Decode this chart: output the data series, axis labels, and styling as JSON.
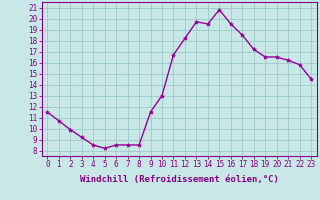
{
  "x": [
    0,
    1,
    2,
    3,
    4,
    5,
    6,
    7,
    8,
    9,
    10,
    11,
    12,
    13,
    14,
    15,
    16,
    17,
    18,
    19,
    20,
    21,
    22,
    23
  ],
  "y": [
    11.5,
    10.7,
    9.9,
    9.2,
    8.5,
    8.2,
    8.5,
    8.5,
    8.5,
    11.5,
    13.0,
    16.7,
    18.2,
    19.7,
    19.5,
    20.8,
    19.5,
    18.5,
    17.2,
    16.5,
    16.5,
    16.2,
    15.8,
    14.5
  ],
  "line_color": "#990099",
  "marker": "*",
  "marker_size": 3,
  "bg_color": "#c8e8e8",
  "grid_color": "#a0c8c8",
  "xlabel": "Windchill (Refroidissement éolien,°C)",
  "xlim": [
    -0.5,
    23.5
  ],
  "ylim": [
    7.5,
    21.5
  ],
  "yticks": [
    8,
    9,
    10,
    11,
    12,
    13,
    14,
    15,
    16,
    17,
    18,
    19,
    20,
    21
  ],
  "xticks": [
    0,
    1,
    2,
    3,
    4,
    5,
    6,
    7,
    8,
    9,
    10,
    11,
    12,
    13,
    14,
    15,
    16,
    17,
    18,
    19,
    20,
    21,
    22,
    23
  ],
  "tick_color": "#880088",
  "label_color": "#880088",
  "label_fontsize": 6.5,
  "tick_fontsize": 5.5,
  "line_width": 1.0
}
